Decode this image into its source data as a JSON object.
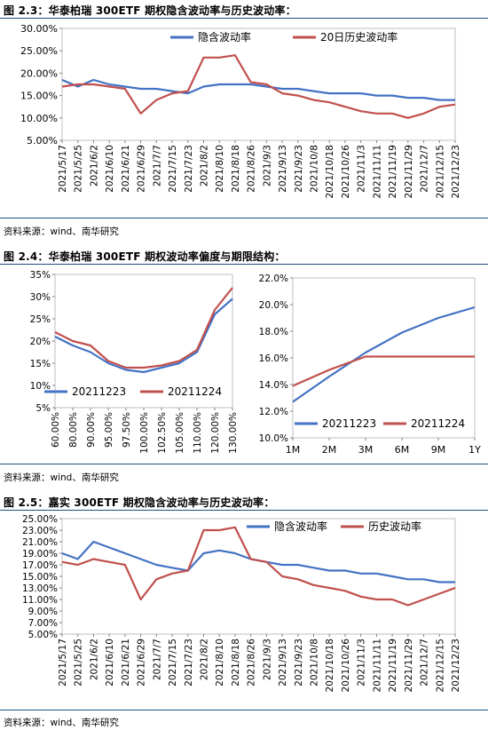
{
  "sections": [
    {
      "title": "图 2.3：华泰柏瑞 300ETF 期权隐含波动率与历史波动率：",
      "source": "资料来源：wind、南华研究"
    },
    {
      "title": "图 2.4：华泰柏瑞 300ETF 期权波动率偏度与期限结构：",
      "source": "资料来源：wind、南华研究"
    },
    {
      "title": "图 2.5：嘉实 300ETF 期权隐含波动率与历史波动率：",
      "source": "资料来源：wind、南华研究"
    }
  ],
  "colors": {
    "blue": "#4472c4",
    "red": "#c0504d",
    "rule": "#1f4e79"
  },
  "chart_data": [
    {
      "type": "line",
      "x": [
        "2021/5/17",
        "2021/5/25",
        "2021/6/2",
        "2021/6/10",
        "2021/6/21",
        "2021/6/29",
        "2021/7/7",
        "2021/7/15",
        "2021/7/23",
        "2021/8/2",
        "2021/8/10",
        "2021/8/18",
        "2021/8/26",
        "2021/9/3",
        "2021/9/13",
        "2021/9/23",
        "2021/10/8",
        "2021/10/18",
        "2021/10/26",
        "2021/11/3",
        "2021/11/11",
        "2021/11/19",
        "2021/11/29",
        "2021/12/7",
        "2021/12/15",
        "2021/12/23"
      ],
      "y_ticks": [
        "5.00%",
        "10.00%",
        "15.00%",
        "20.00%",
        "25.00%",
        "30.00%"
      ],
      "ylim": [
        5,
        30
      ],
      "legend_position": "top",
      "series": [
        {
          "name": "隐含波动率",
          "values": [
            18.5,
            17.0,
            18.5,
            17.5,
            17.0,
            16.5,
            16.5,
            16.0,
            15.5,
            17.0,
            17.5,
            17.5,
            17.5,
            17.0,
            16.5,
            16.5,
            16.0,
            15.5,
            15.5,
            15.5,
            15.0,
            15.0,
            14.5,
            14.5,
            14.0,
            14.0
          ]
        },
        {
          "name": "20日历史波动率",
          "values": [
            17.0,
            17.5,
            17.5,
            17.0,
            16.5,
            11.0,
            14.0,
            15.5,
            16.0,
            23.5,
            23.5,
            24.0,
            18.0,
            17.5,
            15.5,
            15.0,
            14.0,
            13.5,
            12.5,
            11.5,
            11.0,
            11.0,
            10.0,
            11.0,
            12.5,
            13.0
          ]
        }
      ]
    },
    {
      "type": "line",
      "x": [
        "60.00%",
        "80.00%",
        "90.00%",
        "95.00%",
        "97.50%",
        "100.00%",
        "102.50%",
        "105.00%",
        "110.00%",
        "120.00%",
        "130.00%"
      ],
      "y_ticks": [
        "5%",
        "10%",
        "15%",
        "20%",
        "25%",
        "30%",
        "35%"
      ],
      "ylim": [
        5,
        35
      ],
      "legend_position": "bottom-left",
      "series": [
        {
          "name": "20211223",
          "values": [
            21.0,
            19.0,
            17.5,
            15.0,
            13.5,
            13.0,
            14.0,
            15.0,
            17.5,
            26.0,
            29.5
          ]
        },
        {
          "name": "20211224",
          "values": [
            22.0,
            20.0,
            19.0,
            15.5,
            14.0,
            14.0,
            14.5,
            15.5,
            18.0,
            27.0,
            32.0
          ]
        }
      ]
    },
    {
      "type": "line",
      "x": [
        "1M",
        "2M",
        "3M",
        "6M",
        "9M",
        "1Y"
      ],
      "y_ticks": [
        "10.0%",
        "12.0%",
        "14.0%",
        "16.0%",
        "18.0%",
        "20.0%",
        "22.0%"
      ],
      "ylim": [
        10,
        22
      ],
      "legend_position": "bottom",
      "series": [
        {
          "name": "20211223",
          "values": [
            12.7,
            14.6,
            16.4,
            17.9,
            19.0,
            19.8
          ]
        },
        {
          "name": "20211224",
          "values": [
            13.9,
            15.1,
            16.1,
            16.1,
            16.1,
            16.1
          ]
        }
      ]
    },
    {
      "type": "line",
      "x": [
        "2021/5/17",
        "2021/5/25",
        "2021/6/2",
        "2021/6/10",
        "2021/6/21",
        "2021/6/29",
        "2021/7/7",
        "2021/7/15",
        "2021/7/23",
        "2021/8/2",
        "2021/8/10",
        "2021/8/18",
        "2021/8/26",
        "2021/9/3",
        "2021/9/13",
        "2021/9/23",
        "2021/10/8",
        "2021/10/18",
        "2021/10/26",
        "2021/11/3",
        "2021/11/11",
        "2021/11/19",
        "2021/11/29",
        "2021/12/7",
        "2021/12/15",
        "2021/12/23"
      ],
      "y_ticks": [
        "5.00%",
        "7.00%",
        "9.00%",
        "11.00%",
        "13.00%",
        "15.00%",
        "17.00%",
        "19.00%",
        "21.00%",
        "23.00%",
        "25.00%"
      ],
      "ylim": [
        5,
        25
      ],
      "legend_position": "top-right",
      "series": [
        {
          "name": "隐含波动率",
          "values": [
            19.0,
            18.0,
            21.0,
            20.0,
            19.0,
            18.0,
            17.0,
            16.5,
            16.0,
            19.0,
            19.5,
            19.0,
            18.0,
            17.5,
            17.0,
            17.0,
            16.5,
            16.0,
            16.0,
            15.5,
            15.5,
            15.0,
            14.5,
            14.5,
            14.0,
            14.0
          ]
        },
        {
          "name": "历史波动率",
          "values": [
            17.5,
            17.0,
            18.0,
            17.5,
            17.0,
            11.0,
            14.5,
            15.5,
            16.0,
            23.0,
            23.0,
            23.5,
            18.0,
            17.5,
            15.0,
            14.5,
            13.5,
            13.0,
            12.5,
            11.5,
            11.0,
            11.0,
            10.0,
            11.0,
            12.0,
            13.0
          ]
        }
      ]
    }
  ]
}
